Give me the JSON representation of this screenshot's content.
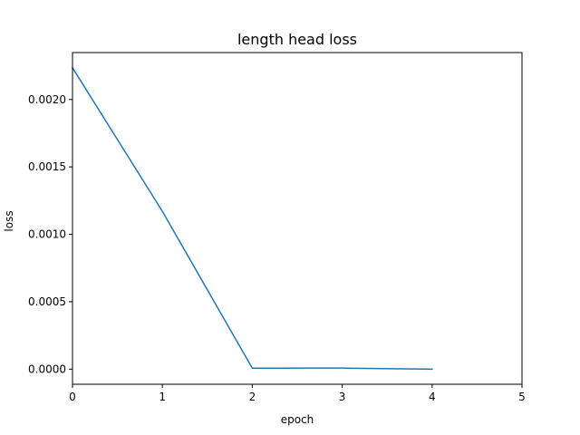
{
  "chart_data": {
    "type": "line",
    "title": "length head loss",
    "xlabel": "epoch",
    "ylabel": "loss",
    "xlim": [
      0,
      5
    ],
    "ylim": [
      -0.000112,
      0.002348
    ],
    "xticks": [
      0,
      1,
      2,
      3,
      4,
      5
    ],
    "xtick_labels": [
      "0",
      "1",
      "2",
      "3",
      "4",
      "5"
    ],
    "yticks": [
      0.0,
      0.0005,
      0.001,
      0.0015,
      0.002
    ],
    "ytick_labels": [
      "0.0000",
      "0.0005",
      "0.0010",
      "0.0015",
      "0.0020"
    ],
    "grid": false,
    "series": [
      {
        "color": "#1f77b4",
        "x": [
          0,
          1,
          2,
          3,
          4
        ],
        "y": [
          0.002235,
          0.00117,
          7e-06,
          8e-06,
          0.0
        ]
      }
    ]
  }
}
